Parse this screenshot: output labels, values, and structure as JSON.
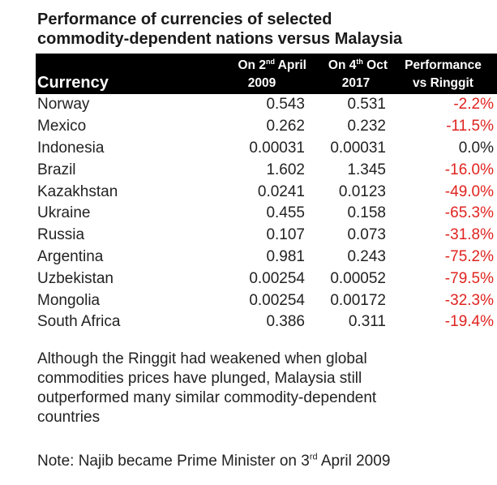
{
  "title": {
    "line1": "Performance of currencies of selected",
    "line2": "commodity-dependent nations versus Malaysia"
  },
  "table": {
    "headers": {
      "currency": "Currency",
      "col1_prefix": "On 2",
      "col1_sup": "nd",
      "col1_suffix": " April",
      "col1_line2": "2009",
      "col2_prefix": "On 4",
      "col2_sup": "th",
      "col2_suffix": " Oct",
      "col2_line2": "2017",
      "col3_line1": "Performance",
      "col3_line2": "vs Ringgit"
    },
    "rows": [
      {
        "currency": "Norway",
        "v2009": "0.543",
        "v2017": "0.531",
        "perf": "-2.2%"
      },
      {
        "currency": "Mexico",
        "v2009": "0.262",
        "v2017": "0.232",
        "perf": "-11.5%"
      },
      {
        "currency": "Indonesia",
        "v2009": "0.00031",
        "v2017": "0.00031",
        "perf": "0.0%"
      },
      {
        "currency": "Brazil",
        "v2009": "1.602",
        "v2017": "1.345",
        "perf": "-16.0%"
      },
      {
        "currency": "Kazakhstan",
        "v2009": "0.0241",
        "v2017": "0.0123",
        "perf": "-49.0%"
      },
      {
        "currency": "Ukraine",
        "v2009": "0.455",
        "v2017": "0.158",
        "perf": "-65.3%"
      },
      {
        "currency": "Russia",
        "v2009": "0.107",
        "v2017": "0.073",
        "perf": "-31.8%"
      },
      {
        "currency": "Argentina",
        "v2009": "0.981",
        "v2017": "0.243",
        "perf": "-75.2%"
      },
      {
        "currency": "Uzbekistan",
        "v2009": "0.00254",
        "v2017": "0.00052",
        "perf": "-79.5%"
      },
      {
        "currency": "Mongolia",
        "v2009": "0.00254",
        "v2017": "0.00172",
        "perf": "-32.3%"
      },
      {
        "currency": "South Africa",
        "v2009": "0.386",
        "v2017": "0.311",
        "perf": "-19.4%"
      }
    ]
  },
  "paragraph": {
    "line1": "Although the Ringgit had weakened when global",
    "line2": "commodities prices have plunged, Malaysia still",
    "line3": "outperformed many similar commodity-dependent",
    "line4": "countries"
  },
  "note": {
    "prefix": "Note: Najib became Prime Minister on 3",
    "sup": "rd",
    "suffix": " April 2009"
  },
  "colors": {
    "negative": "#e0231f",
    "header_bg": "#000000",
    "header_text": "#ffffff"
  }
}
